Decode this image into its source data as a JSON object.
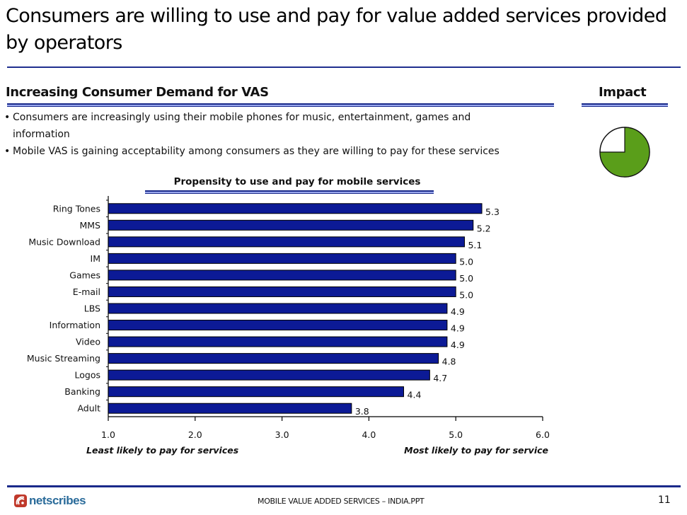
{
  "slide": {
    "title": "Consumers are willing to use and pay for value added services provided by operators",
    "left_section_heading": "Increasing Consumer Demand for VAS",
    "right_section_heading": "Impact",
    "bullets": [
      "Consumers are increasingly using their mobile phones for music, entertainment, games and information",
      "Mobile VAS is gaining acceptability among consumers as they are willing to pay for these services"
    ],
    "impact_level": 0.75,
    "impact_color": "#5a9e1a",
    "footer": {
      "logo_text": "netscribes",
      "document_name": "MOBILE VALUE ADDED SERVICES – INDIA.PPT",
      "page_number": "11"
    }
  },
  "chart_data": {
    "type": "bar",
    "orientation": "horizontal",
    "title": "Propensity to use and pay for mobile services",
    "categories": [
      "Ring Tones",
      "MMS",
      "Music Download",
      "IM",
      "Games",
      "E-mail",
      "LBS",
      "Information",
      "Video",
      "Music Streaming",
      "Logos",
      "Banking",
      "Adult"
    ],
    "values": [
      5.3,
      5.2,
      5.1,
      5.0,
      5.0,
      5.0,
      4.9,
      4.9,
      4.9,
      4.8,
      4.7,
      4.4,
      3.8
    ],
    "value_labels": [
      "5.3",
      "5.2",
      "5.1",
      "5.0",
      "5.0",
      "5.0",
      "4.9",
      "4.9",
      "4.9",
      "4.8",
      "4.7",
      "4.4",
      "3.8"
    ],
    "xlim": [
      1.0,
      6.0
    ],
    "x_ticks": [
      1.0,
      2.0,
      3.0,
      4.0,
      5.0,
      6.0
    ],
    "x_tick_labels": [
      "1.0",
      "2.0",
      "3.0",
      "4.0",
      "5.0",
      "6.0"
    ],
    "xlabel_left": "Least likely to pay for services",
    "xlabel_right": "Most likely to pay for service",
    "bar_color": "#0c1a96",
    "grid": false,
    "legend": "none"
  }
}
